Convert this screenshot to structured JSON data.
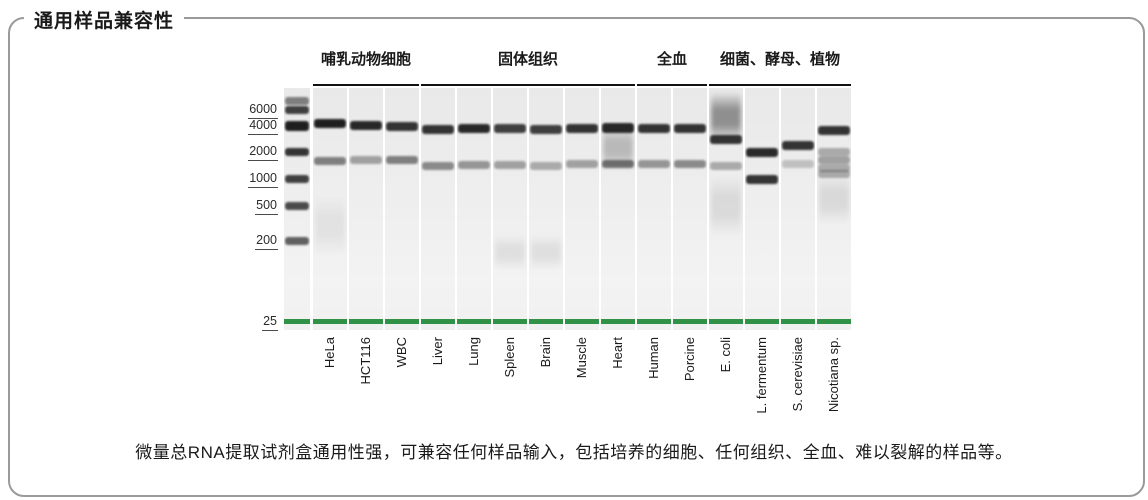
{
  "panel": {
    "title": "通用样品兼容性",
    "caption": "微量总RNA提取试剂盒通用性强，可兼容任何样品输入，包括培养的细胞、任何组织、全血、难以裂解的样品等。"
  },
  "chart_data": {
    "type": "gel-electrophoresis",
    "title": "通用样品兼容性",
    "y_axis": {
      "unit": "nt",
      "scale": "log",
      "tick_labels": [
        6000,
        4000,
        2000,
        1000,
        500,
        200,
        25
      ]
    },
    "lower_marker": {
      "bp": 25,
      "color": "#2f9247"
    },
    "groups": [
      {
        "label": "哺乳动物细胞",
        "lanes": [
          "HeLa",
          "HCT116",
          "WBC"
        ]
      },
      {
        "label": "固体组织",
        "lanes": [
          "Liver",
          "Lung",
          "Spleen",
          "Brain",
          "Muscle",
          "Heart"
        ]
      },
      {
        "label": "全血",
        "lanes": [
          "Human",
          "Porcine"
        ]
      },
      {
        "label": "细菌、酵母、植物",
        "lanes": [
          "E. coli",
          "L. fermentum",
          "S. cerevisiae",
          "Nicotiana sp."
        ]
      }
    ],
    "ladder": {
      "label": "ladder",
      "bands": [
        {
          "bp": 7500,
          "intensity": 0.5
        },
        {
          "bp": 6000,
          "intensity": 0.8
        },
        {
          "bp": 4000,
          "intensity": 0.95,
          "h": 10
        },
        {
          "bp": 2000,
          "intensity": 0.85
        },
        {
          "bp": 1000,
          "intensity": 0.8
        },
        {
          "bp": 500,
          "intensity": 0.75
        },
        {
          "bp": 200,
          "intensity": 0.65
        }
      ]
    },
    "lanes": [
      {
        "label": "HeLa",
        "bands": [
          {
            "bp": 4200,
            "intensity": 0.95,
            "h": 9
          },
          {
            "bp": 1600,
            "intensity": 0.5
          },
          {
            "bp": 300,
            "intensity": 0.08,
            "kind": "smear",
            "spread": 60
          }
        ]
      },
      {
        "label": "HCT116",
        "bands": [
          {
            "bp": 4000,
            "intensity": 0.9,
            "h": 9
          },
          {
            "bp": 1650,
            "intensity": 0.35
          }
        ]
      },
      {
        "label": "WBC",
        "bands": [
          {
            "bp": 3900,
            "intensity": 0.85,
            "h": 9
          },
          {
            "bp": 1650,
            "intensity": 0.5
          }
        ]
      },
      {
        "label": "Liver",
        "bands": [
          {
            "bp": 3600,
            "intensity": 0.85,
            "h": 9
          },
          {
            "bp": 1400,
            "intensity": 0.45
          }
        ]
      },
      {
        "label": "Lung",
        "bands": [
          {
            "bp": 3700,
            "intensity": 0.9,
            "h": 9
          },
          {
            "bp": 1450,
            "intensity": 0.4
          }
        ]
      },
      {
        "label": "Spleen",
        "bands": [
          {
            "bp": 3700,
            "intensity": 0.8,
            "h": 9
          },
          {
            "bp": 1450,
            "intensity": 0.35
          },
          {
            "bp": 150,
            "intensity": 0.1,
            "kind": "smear",
            "spread": 35
          }
        ]
      },
      {
        "label": "Brain",
        "bands": [
          {
            "bp": 3600,
            "intensity": 0.8,
            "h": 9
          },
          {
            "bp": 1400,
            "intensity": 0.3
          },
          {
            "bp": 150,
            "intensity": 0.1,
            "kind": "smear",
            "spread": 35
          }
        ]
      },
      {
        "label": "Muscle",
        "bands": [
          {
            "bp": 3700,
            "intensity": 0.85,
            "h": 9
          },
          {
            "bp": 1500,
            "intensity": 0.35
          }
        ]
      },
      {
        "label": "Heart",
        "bands": [
          {
            "bp": 3800,
            "intensity": 0.9,
            "h": 10
          },
          {
            "bp": 2300,
            "intensity": 0.3,
            "kind": "smear",
            "spread": 45
          },
          {
            "bp": 1500,
            "intensity": 0.55
          }
        ]
      },
      {
        "label": "Human",
        "bands": [
          {
            "bp": 3700,
            "intensity": 0.85,
            "h": 9
          },
          {
            "bp": 1500,
            "intensity": 0.4
          }
        ]
      },
      {
        "label": "Porcine",
        "bands": [
          {
            "bp": 3700,
            "intensity": 0.85,
            "h": 9
          },
          {
            "bp": 1500,
            "intensity": 0.45
          }
        ]
      },
      {
        "label": "E. coli",
        "bands": [
          {
            "bp": 5000,
            "intensity": 0.55,
            "kind": "smear",
            "spread": 50
          },
          {
            "bp": 2800,
            "intensity": 0.85,
            "h": 9
          },
          {
            "bp": 1400,
            "intensity": 0.3
          },
          {
            "bp": 500,
            "intensity": 0.12,
            "kind": "smear",
            "spread": 60
          }
        ]
      },
      {
        "label": "L. fermentum",
        "bands": [
          {
            "bp": 2000,
            "intensity": 0.9,
            "h": 9
          },
          {
            "bp": 1000,
            "intensity": 0.85,
            "h": 9
          }
        ]
      },
      {
        "label": "S. cerevisiae",
        "bands": [
          {
            "bp": 2400,
            "intensity": 0.85,
            "h": 9
          },
          {
            "bp": 1500,
            "intensity": 0.2
          }
        ]
      },
      {
        "label": "Nicotiana sp.",
        "bands": [
          {
            "bp": 3500,
            "intensity": 0.85,
            "h": 9
          },
          {
            "bp": 2000,
            "intensity": 0.3
          },
          {
            "bp": 1650,
            "intensity": 0.35
          },
          {
            "bp": 1350,
            "intensity": 0.3
          },
          {
            "bp": 1150,
            "intensity": 0.3
          },
          {
            "bp": 600,
            "intensity": 0.12,
            "kind": "smear",
            "spread": 50
          }
        ]
      }
    ]
  }
}
